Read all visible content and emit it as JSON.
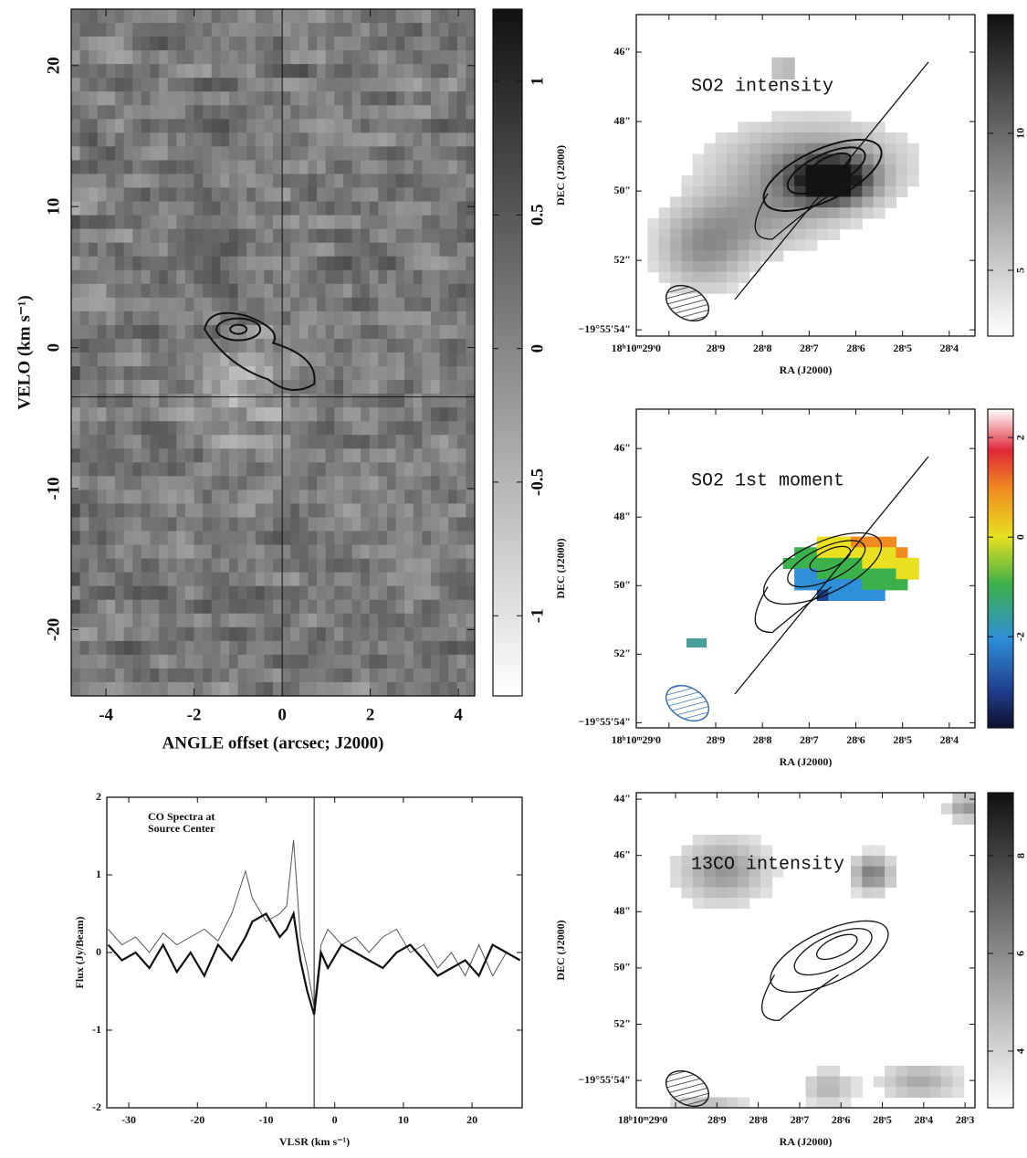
{
  "chart_data": [
    {
      "type": "image",
      "xlabel": "ANGLE offset (arcsec; J2000)",
      "ylabel": "VELO (km s⁻¹)",
      "xlim": [
        -4.79,
        4.37
      ],
      "ylim": [
        -24.7,
        24.0
      ],
      "xticks": [
        -4,
        -2,
        0,
        2,
        4
      ],
      "yticks": [
        -20,
        -10,
        0,
        10,
        20
      ],
      "crosshair": {
        "x": 0,
        "y": -3.5
      },
      "colormap": "gray",
      "colorbar": {
        "ylim": [
          -1.3,
          1.27
        ],
        "yticks": [
          -1,
          -0.5,
          0,
          0.5,
          1
        ]
      }
    },
    {
      "type": "line",
      "title": [
        "CO Spectra at",
        "Source Center"
      ],
      "xlabel": "VLSR (km s⁻¹)",
      "ylabel": "Flux (Jy/Beam)",
      "xlim": [
        -33.2,
        27.3
      ],
      "ylim": [
        -2,
        2
      ],
      "xticks": [
        -30,
        -20,
        -10,
        0,
        10,
        20
      ],
      "yticks": [
        -2,
        -1,
        0,
        1,
        2
      ],
      "vline": -3,
      "x": [
        -33,
        -31,
        -29,
        -27,
        -25,
        -23,
        -21,
        -19,
        -17,
        -15,
        -13,
        -12,
        -10,
        -8,
        -7,
        -6,
        -5,
        -4,
        -3,
        -2,
        -1,
        1,
        3,
        5,
        7,
        9,
        11,
        13,
        15,
        17,
        19,
        21,
        23,
        25,
        27
      ],
      "series": [
        {
          "color": "#555555",
          "line_width": 1,
          "values": [
            0.3,
            0.1,
            0.2,
            0.0,
            0.25,
            0.1,
            0.2,
            0.3,
            0.15,
            0.5,
            1.05,
            0.7,
            0.4,
            0.5,
            0.6,
            1.45,
            0.2,
            -0.2,
            -0.7,
            0.1,
            0.3,
            0.1,
            0.2,
            0.0,
            0.2,
            0.3,
            0.0,
            0.1,
            -0.2,
            0.0,
            -0.3,
            0.1,
            -0.3,
            0.0,
            -0.1
          ]
        },
        {
          "color": "#111111",
          "line_width": 2.2,
          "values": [
            0.1,
            -0.1,
            0.0,
            -0.2,
            0.1,
            -0.25,
            0.0,
            -0.3,
            0.1,
            -0.1,
            0.2,
            0.4,
            0.5,
            0.2,
            0.3,
            0.5,
            -0.1,
            -0.5,
            -0.8,
            0.0,
            -0.2,
            0.1,
            0.0,
            -0.1,
            -0.2,
            0.0,
            0.1,
            -0.1,
            -0.3,
            -0.2,
            -0.1,
            -0.3,
            0.1,
            0.0,
            -0.1
          ]
        }
      ]
    },
    {
      "type": "image",
      "title": "SO2 intensity",
      "xlabel": "RA (J2000)",
      "ylabel": "DEC (J2000)",
      "colormap": "gray",
      "xlim": [
        29.07,
        28.345
      ],
      "ylim": [
        54.18,
        44.92
      ],
      "xticks": [
        {
          "value": 29.0,
          "label": "18ʰ10ᵐ29ˢ0"
        },
        {
          "value": 28.9,
          "label": "28ˢ9"
        },
        {
          "value": 28.8,
          "label": "28ˢ8"
        },
        {
          "value": 28.7,
          "label": "28ˢ7"
        },
        {
          "value": 28.6,
          "label": "28ˢ6"
        },
        {
          "value": 28.5,
          "label": "28ˢ5"
        },
        {
          "value": 28.4,
          "label": "28ˢ4"
        }
      ],
      "yticks": [
        {
          "value": 46,
          "label": "46″"
        },
        {
          "value": 48,
          "label": "48″"
        },
        {
          "value": 50,
          "label": "50″"
        },
        {
          "value": 52,
          "label": "52″"
        },
        {
          "value": 54,
          "label": "−19°55′54″"
        }
      ],
      "colorbar": {
        "ylim": [
          2.6,
          14.33
        ],
        "yticks": [
          5,
          10
        ]
      }
    },
    {
      "type": "image",
      "title": "SO2 1st moment",
      "xlabel": "RA (J2000)",
      "ylabel": "DEC (J2000)",
      "colormap": "rainbow",
      "xlim": [
        29.07,
        28.345
      ],
      "ylim": [
        54.15,
        44.85
      ],
      "xticks": [
        {
          "value": 29.0,
          "label": "18ʰ10ᵐ29ˢ0"
        },
        {
          "value": 28.9,
          "label": "28ˢ9"
        },
        {
          "value": 28.8,
          "label": "28ˢ8"
        },
        {
          "value": 28.7,
          "label": "28ˢ7"
        },
        {
          "value": 28.6,
          "label": "28ˢ6"
        },
        {
          "value": 28.5,
          "label": "28ˢ5"
        },
        {
          "value": 28.4,
          "label": "28ˢ4"
        }
      ],
      "yticks": [
        {
          "value": 46,
          "label": "46″"
        },
        {
          "value": 48,
          "label": "48″"
        },
        {
          "value": 50,
          "label": "50″"
        },
        {
          "value": 52,
          "label": "52″"
        },
        {
          "value": 54,
          "label": "−19°55′54″"
        }
      ],
      "colorbar": {
        "ylim": [
          -3.83,
          2.57
        ],
        "yticks": [
          -2,
          0,
          2
        ]
      }
    },
    {
      "type": "image",
      "title": "13CO intensity",
      "xlabel": "RA (J2000)",
      "ylabel": "DEC (J2000)",
      "colormap": "gray",
      "xlim": [
        29.095,
        28.276
      ],
      "ylim": [
        54.97,
        43.77
      ],
      "xticks": [
        {
          "value": 29.0,
          "label": "18ʰ10ᵐ29ˢ0"
        },
        {
          "value": 28.9,
          "label": "28ˢ9"
        },
        {
          "value": 28.8,
          "label": "28ˢ8"
        },
        {
          "value": 28.7,
          "label": "28ˢ7"
        },
        {
          "value": 28.6,
          "label": "28ˢ6"
        },
        {
          "value": 28.5,
          "label": "28ˢ5"
        },
        {
          "value": 28.4,
          "label": "28ˢ4"
        },
        {
          "value": 28.3,
          "label": "28ˢ3"
        }
      ],
      "yticks": [
        {
          "value": 44,
          "label": "44″"
        },
        {
          "value": 46,
          "label": "46″"
        },
        {
          "value": 48,
          "label": "48″"
        },
        {
          "value": 50,
          "label": "50″"
        },
        {
          "value": 52,
          "label": "52″"
        },
        {
          "value": 54,
          "label": "−19°55′54″"
        }
      ],
      "colorbar": {
        "ylim": [
          2.84,
          9.29
        ],
        "yticks": [
          4,
          6,
          8
        ]
      }
    }
  ]
}
